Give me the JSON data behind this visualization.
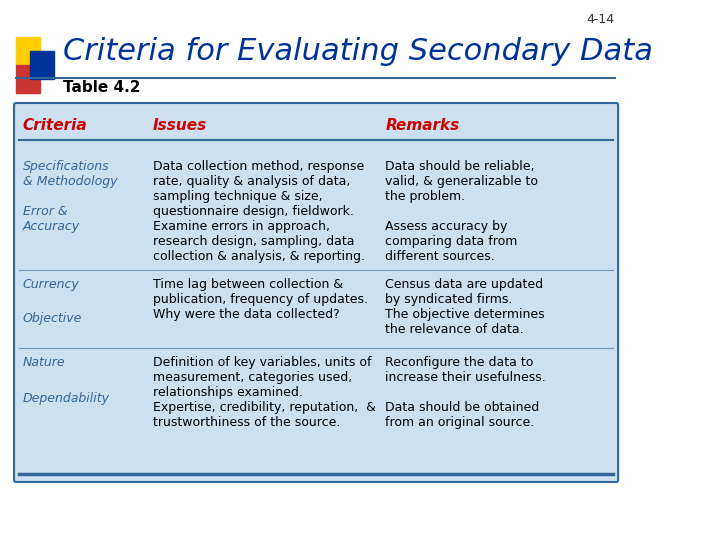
{
  "slide_number": "4-14",
  "title": "Criteria for Evaluating Secondary Data",
  "subtitle": "Table 4.2",
  "bg_color": "#ffffff",
  "title_color": "#003399",
  "subtitle_color": "#000000",
  "table_bg": "#cce0f0",
  "table_border": "#336699",
  "header_color": "#cc0000",
  "criteria_color": "#336699",
  "body_color": "#000000",
  "header_line_color": "#336699",
  "logo_yellow": "#ffcc00",
  "logo_red": "#cc3333",
  "logo_blue": "#003399",
  "rows": [
    {
      "criteria": "Specifications\n& Methodology",
      "issues": "Data collection method, response\nrate, quality & analysis of data,\nsampling technique & size,\nquestionnaire design, fieldwork.\nExamine errors in approach,\nresearch design, sampling, data\ncollection & analysis, & reporting.",
      "remarks": "Data should be reliable,\nvalid, & generalizable to\nthe problem.\n\nAssess accuracy by\ncomparing data from\ndifferent sources.",
      "criteria2": "Error &\nAccuracy"
    },
    {
      "criteria": "Currency",
      "issues": "Time lag between collection &\npublication, frequency of updates.\nWhy were the data collected?",
      "remarks": "Census data are updated\nby syndicated firms.\nThe objective determines\nthe relevance of data.",
      "criteria2": "Objective"
    },
    {
      "criteria": "Nature",
      "issues": "Definition of key variables, units of\nmeasurement, categories used,\nrelationships examined.\nExpertise, credibility, reputation,  &\ntrustworthiness of the source.",
      "remarks": "Reconfigure the data to\nincrease their usefulness.\n\nData should be obtained\nfrom an original source.",
      "criteria2": "Dependability"
    }
  ]
}
